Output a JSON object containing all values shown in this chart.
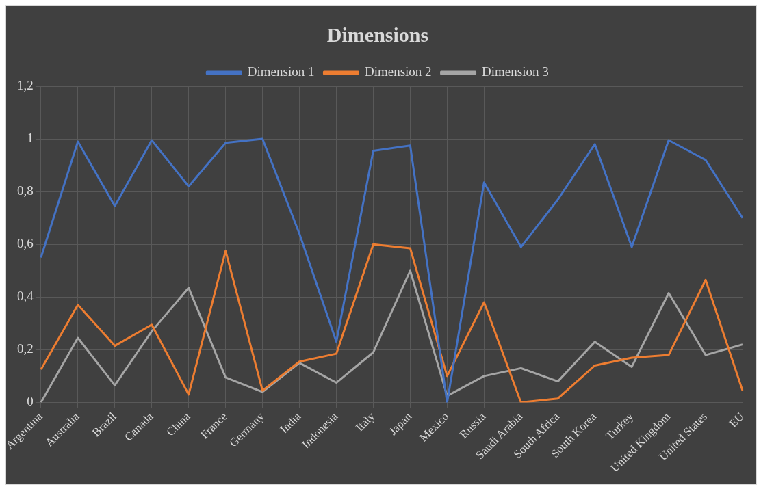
{
  "chart_data": {
    "type": "line",
    "title": "Dimensions",
    "categories": [
      "Argentina",
      "Australia",
      "Brazil",
      "Canada",
      "China",
      "France",
      "Germany",
      "India",
      "Indonesia",
      "Italy",
      "Japan",
      "Mexico",
      "Russia",
      "Saudi Arabia",
      "South Africa",
      "South Korea",
      "Turkey",
      "United Kingdom",
      "United States",
      "EU"
    ],
    "series": [
      {
        "name": "Dimension 1",
        "color": "#4472c4",
        "values": [
          0.55,
          0.99,
          0.745,
          0.995,
          0.82,
          0.985,
          1.0,
          0.64,
          0.23,
          0.955,
          0.975,
          0.0,
          0.835,
          0.59,
          0.77,
          0.98,
          0.59,
          0.995,
          0.92,
          0.7
        ]
      },
      {
        "name": "Dimension 2",
        "color": "#ed7d31",
        "values": [
          0.125,
          0.37,
          0.215,
          0.295,
          0.03,
          0.575,
          0.045,
          0.155,
          0.185,
          0.6,
          0.585,
          0.1,
          0.38,
          0.0,
          0.015,
          0.14,
          0.17,
          0.18,
          0.465,
          0.045
        ]
      },
      {
        "name": "Dimension 3",
        "color": "#a5a5a5",
        "values": [
          0.0,
          0.245,
          0.065,
          0.27,
          0.435,
          0.095,
          0.04,
          0.15,
          0.075,
          0.19,
          0.5,
          0.025,
          0.1,
          0.13,
          0.08,
          0.23,
          0.135,
          0.415,
          0.18,
          0.22
        ]
      }
    ],
    "ylim": [
      0,
      1.2
    ],
    "yticks": [
      0,
      {
        "value": 0.2,
        "label": "0,2"
      },
      {
        "value": 0.4,
        "label": "0,4"
      },
      {
        "value": 0.6,
        "label": "0,6"
      },
      {
        "value": 0.8,
        "label": "0,8"
      },
      1,
      {
        "value": 1.2,
        "label": "1,2"
      }
    ],
    "grid": true,
    "legend": "top",
    "marker": "none",
    "line_style": "solid"
  }
}
